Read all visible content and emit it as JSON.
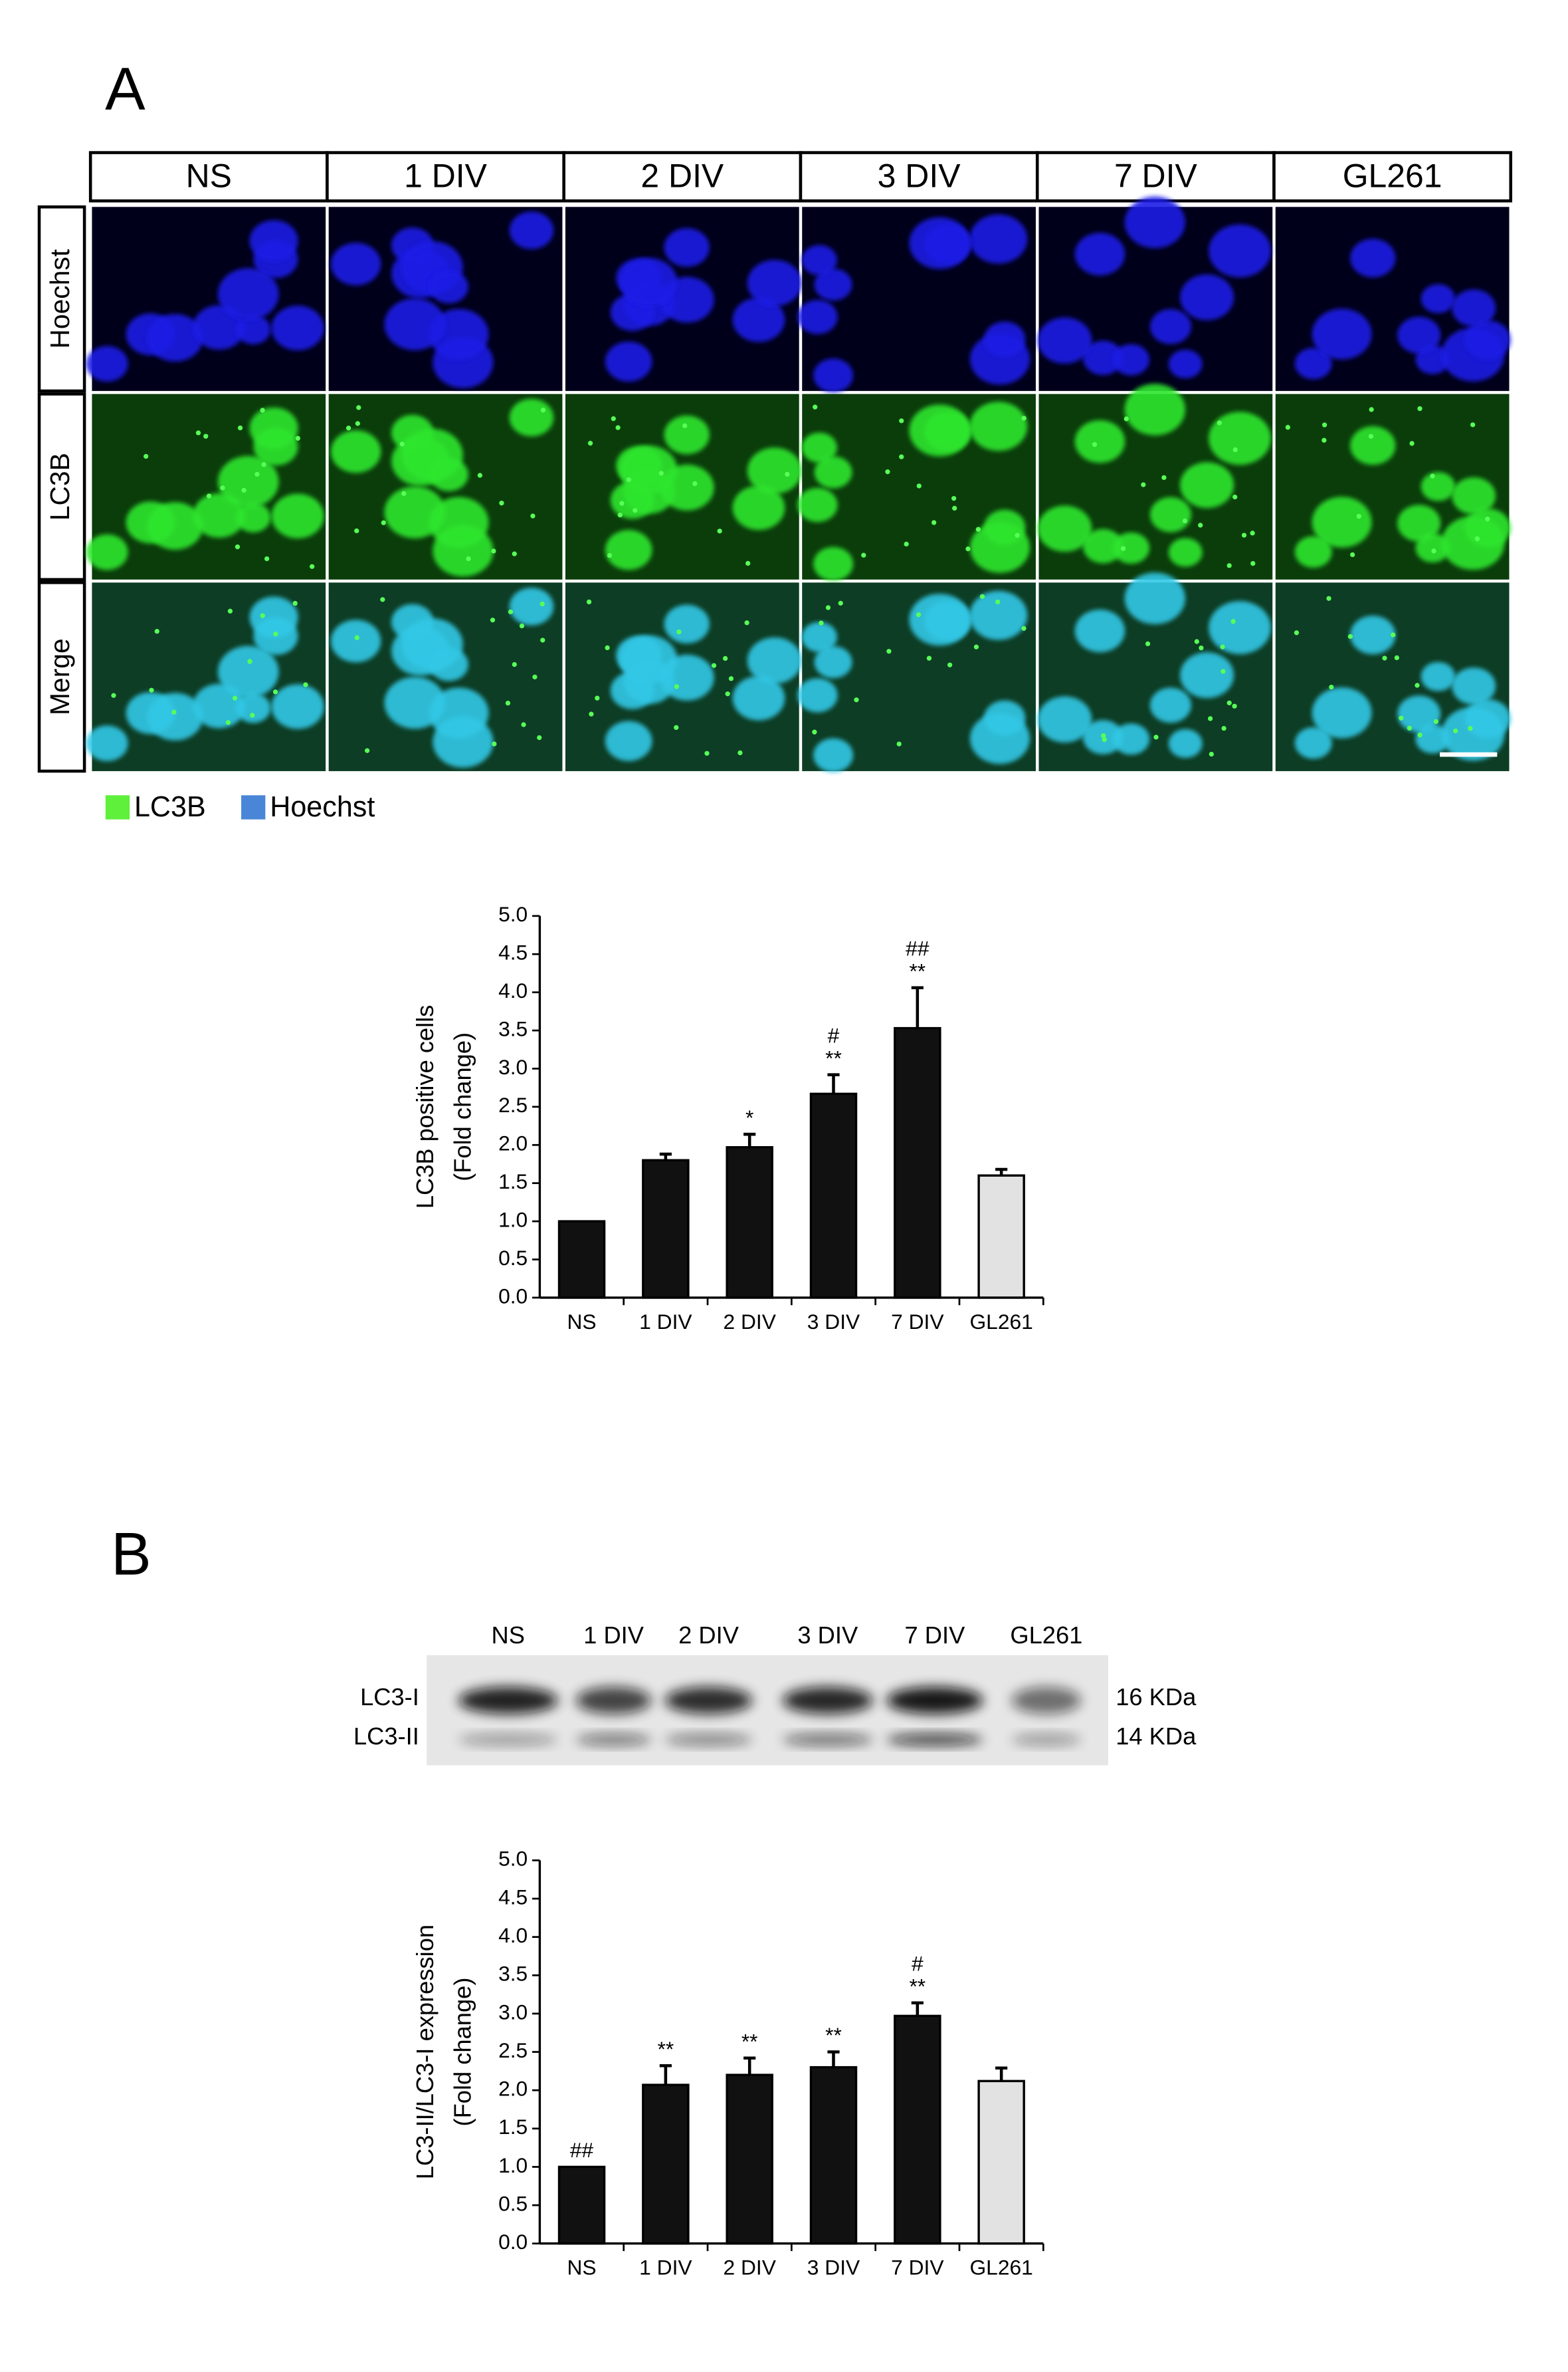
{
  "panels": [
    "A",
    "B"
  ],
  "microscopy": {
    "columns": [
      "NS",
      "1 DIV",
      "2 DIV",
      "3 DIV",
      "7 DIV",
      "GL261"
    ],
    "rows": [
      "Hoechst",
      "LC3B",
      "Merge"
    ],
    "legend": [
      {
        "name": "LC3B",
        "color": "#5ef03a"
      },
      {
        "name": "Hoechst",
        "color": "#4a86d8"
      }
    ]
  },
  "blot": {
    "lanes": [
      "NS",
      "1 DIV",
      "2 DIV",
      "3 DIV",
      "7 DIV",
      "GL261"
    ],
    "bands": [
      "LC3-I",
      "LC3-II"
    ],
    "sizes": [
      "16 KDa",
      "14 KDa"
    ]
  },
  "chart_data": [
    {
      "type": "bar",
      "ylabel": [
        "LC3B positive cells",
        "(Fold change)"
      ],
      "categories": [
        "NS",
        "1 DIV",
        "2 DIV",
        "3 DIV",
        "7 DIV",
        "GL261"
      ],
      "values": [
        1.0,
        1.8,
        1.97,
        2.67,
        3.53,
        1.6
      ],
      "errors": [
        0,
        0.08,
        0.17,
        0.25,
        0.53,
        0.08
      ],
      "colors": [
        "#111111",
        "#111111",
        "#111111",
        "#111111",
        "#111111",
        "#e2e2e2"
      ],
      "annotations": [
        null,
        null,
        [
          "*"
        ],
        [
          "#",
          "**"
        ],
        [
          "##",
          "**"
        ],
        null
      ],
      "ylim": [
        0,
        5
      ],
      "yticks": [
        {
          "value": 0,
          "label": "0.0"
        },
        0.5,
        {
          "value": 1,
          "label": "1.0"
        },
        1.5,
        {
          "value": 2,
          "label": "2.0"
        },
        2.5,
        {
          "value": 3,
          "label": "3.0"
        },
        3.5,
        {
          "value": 4,
          "label": "4.0"
        },
        4.5,
        {
          "value": 5,
          "label": "5.0"
        }
      ]
    },
    {
      "type": "bar",
      "ylabel": [
        "LC3-II/LC3-I expression",
        "(Fold change)"
      ],
      "categories": [
        "NS",
        "1 DIV",
        "2 DIV",
        "3 DIV",
        "7 DIV",
        "GL261"
      ],
      "values": [
        1.0,
        2.07,
        2.2,
        2.3,
        2.97,
        2.12
      ],
      "errors": [
        0,
        0.25,
        0.22,
        0.2,
        0.17,
        0.17
      ],
      "colors": [
        "#111111",
        "#111111",
        "#111111",
        "#111111",
        "#111111",
        "#e2e2e2"
      ],
      "annotations": [
        [
          "##"
        ],
        [
          "**"
        ],
        [
          "**"
        ],
        [
          "**"
        ],
        [
          "#",
          "**"
        ],
        null
      ],
      "ylim": [
        0,
        5
      ],
      "yticks": [
        {
          "value": 0,
          "label": "0.0"
        },
        0.5,
        {
          "value": 1,
          "label": "1.0"
        },
        1.5,
        {
          "value": 2,
          "label": "2.0"
        },
        2.5,
        {
          "value": 3,
          "label": "3.0"
        },
        3.5,
        {
          "value": 4,
          "label": "4.0"
        },
        4.5,
        {
          "value": 5,
          "label": "5.0"
        }
      ]
    }
  ]
}
